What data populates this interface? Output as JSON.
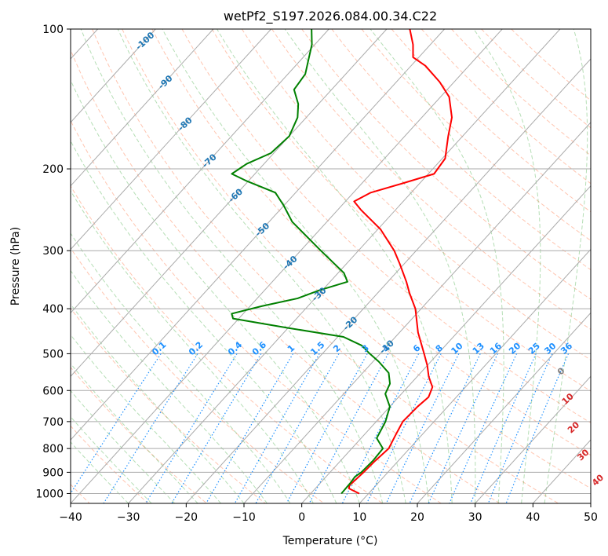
{
  "chart_data": {
    "type": "skew-t",
    "title": "wetPf2_S197.2026.084.00.34.C22",
    "xlabel": "Temperature (°C)",
    "ylabel": "Pressure (hPa)",
    "xlim": [
      -40,
      50
    ],
    "ylim": [
      1050,
      100
    ],
    "x_ticks": [
      -40,
      -30,
      -20,
      -10,
      0,
      10,
      20,
      30,
      40,
      50
    ],
    "x_tick_labels": [
      "−40",
      "−30",
      "−20",
      "−10",
      "0",
      "10",
      "20",
      "30",
      "40",
      "50"
    ],
    "y_ticks": [
      100,
      200,
      300,
      400,
      500,
      600,
      700,
      800,
      900,
      1000
    ],
    "y_tick_labels": [
      "100",
      "200",
      "300",
      "400",
      "500",
      "600",
      "700",
      "800",
      "900",
      "1000"
    ],
    "colors": {
      "temperature": "#ff0000",
      "dewpoint": "#008000",
      "isotherm": "#aaaaaa",
      "isobar": "#aaaaaa",
      "dry_adiabat": "#ff7f50",
      "moist_adiabat": "#2ca02c",
      "mixing_ratio": "#1e90ff",
      "dry_adiabat_label": "#d62728",
      "moist_adiabat_label": "#1f77b4",
      "zero_label": "#7f7f7f"
    },
    "series": [
      {
        "name": "Temperature",
        "color": "#ff0000",
        "points": [
          [
            1000,
            8.4
          ],
          [
            975,
            5.8
          ],
          [
            960,
            5.4
          ],
          [
            930,
            5.6
          ],
          [
            900,
            5.8
          ],
          [
            850,
            6.0
          ],
          [
            800,
            6.4
          ],
          [
            750,
            5.5
          ],
          [
            700,
            4.6
          ],
          [
            650,
            4.8
          ],
          [
            620,
            5.2
          ],
          [
            590,
            4.3
          ],
          [
            560,
            2.0
          ],
          [
            530,
            0.0
          ],
          [
            500,
            -2.4
          ],
          [
            450,
            -6.8
          ],
          [
            400,
            -11.0
          ],
          [
            370,
            -14.5
          ],
          [
            350,
            -16.8
          ],
          [
            320,
            -20.8
          ],
          [
            300,
            -23.8
          ],
          [
            270,
            -29.5
          ],
          [
            245,
            -36.0
          ],
          [
            235,
            -38.5
          ],
          [
            225,
            -37.0
          ],
          [
            215,
            -33.0
          ],
          [
            205,
            -29.0
          ],
          [
            190,
            -29.5
          ],
          [
            170,
            -32.5
          ],
          [
            155,
            -34.8
          ],
          [
            140,
            -38.5
          ],
          [
            130,
            -42.5
          ],
          [
            120,
            -47.5
          ],
          [
            115,
            -51.0
          ],
          [
            108,
            -53.0
          ],
          [
            100,
            -56.0
          ]
        ]
      },
      {
        "name": "Dewpoint",
        "color": "#008000",
        "points": [
          [
            1000,
            5.3
          ],
          [
            950,
            5.2
          ],
          [
            920,
            5.0
          ],
          [
            900,
            5.4
          ],
          [
            850,
            5.6
          ],
          [
            800,
            5.4
          ],
          [
            760,
            2.7
          ],
          [
            700,
            1.6
          ],
          [
            650,
            0.0
          ],
          [
            610,
            -2.8
          ],
          [
            580,
            -3.6
          ],
          [
            550,
            -5.5
          ],
          [
            520,
            -9.0
          ],
          [
            500,
            -11.8
          ],
          [
            480,
            -14.5
          ],
          [
            460,
            -19.0
          ],
          [
            440,
            -30.0
          ],
          [
            420,
            -41.0
          ],
          [
            410,
            -42.0
          ],
          [
            395,
            -38.0
          ],
          [
            380,
            -33.0
          ],
          [
            365,
            -30.5
          ],
          [
            350,
            -27.0
          ],
          [
            335,
            -29.0
          ],
          [
            300,
            -36.5
          ],
          [
            260,
            -46.0
          ],
          [
            240,
            -50.0
          ],
          [
            225,
            -53.5
          ],
          [
            212,
            -60.5
          ],
          [
            205,
            -64.0
          ],
          [
            195,
            -63.0
          ],
          [
            185,
            -60.5
          ],
          [
            170,
            -60.0
          ],
          [
            155,
            -61.5
          ],
          [
            145,
            -63.5
          ],
          [
            135,
            -66.5
          ],
          [
            125,
            -67.0
          ],
          [
            115,
            -69.0
          ],
          [
            108,
            -70.5
          ],
          [
            100,
            -73.0
          ]
        ]
      }
    ],
    "isotherm_values": [
      -150,
      -140,
      -130,
      -120,
      -110,
      -100,
      -90,
      -80,
      -70,
      -60,
      -50,
      -40,
      -30,
      -20,
      -10,
      0,
      10,
      20,
      30,
      40,
      50
    ],
    "dry_adiabat_theta_c": [
      -40,
      -30,
      -20,
      -10,
      0,
      10,
      20,
      30,
      40,
      50,
      60,
      70,
      80,
      90,
      100,
      110,
      120,
      130,
      140,
      150,
      160,
      170,
      180
    ],
    "moist_adiabat_labels": [
      {
        "text": "-100",
        "p": 106
      },
      {
        "text": "-90",
        "p": 130
      },
      {
        "text": "-80",
        "p": 160
      },
      {
        "text": "-70",
        "p": 192
      },
      {
        "text": "-60",
        "p": 228
      },
      {
        "text": "-50",
        "p": 270
      },
      {
        "text": "-40",
        "p": 318
      },
      {
        "text": "-30",
        "p": 372
      },
      {
        "text": "-20",
        "p": 430
      },
      {
        "text": "-10",
        "p": 483
      }
    ],
    "moist_adiabat_label_temps": [
      -100,
      -90,
      -80,
      -70,
      -60,
      -50,
      -40,
      -30,
      -20,
      -10
    ],
    "dry_adiabat_labels": [
      {
        "text": "0",
        "t": 24,
        "p": 545
      },
      {
        "text": "10",
        "t": 29.5,
        "p": 625
      },
      {
        "text": "20",
        "t": 35,
        "p": 720
      },
      {
        "text": "30",
        "t": 41,
        "p": 825
      },
      {
        "text": "40",
        "t": 47.5,
        "p": 935
      }
    ],
    "mixing_ratio_labels": [
      "0.1",
      "0.2",
      "0.4",
      "0.6",
      "1",
      "1.5",
      "2",
      "3",
      "4",
      "6",
      "8",
      "10",
      "13",
      "16",
      "20",
      "25",
      "30",
      "36"
    ],
    "mixing_ratio_values": [
      0.1,
      0.2,
      0.4,
      0.6,
      1,
      1.5,
      2,
      3,
      4,
      6,
      8,
      10,
      13,
      16,
      20,
      25,
      30,
      36
    ],
    "mixing_ratio_label_pressure": 500
  }
}
